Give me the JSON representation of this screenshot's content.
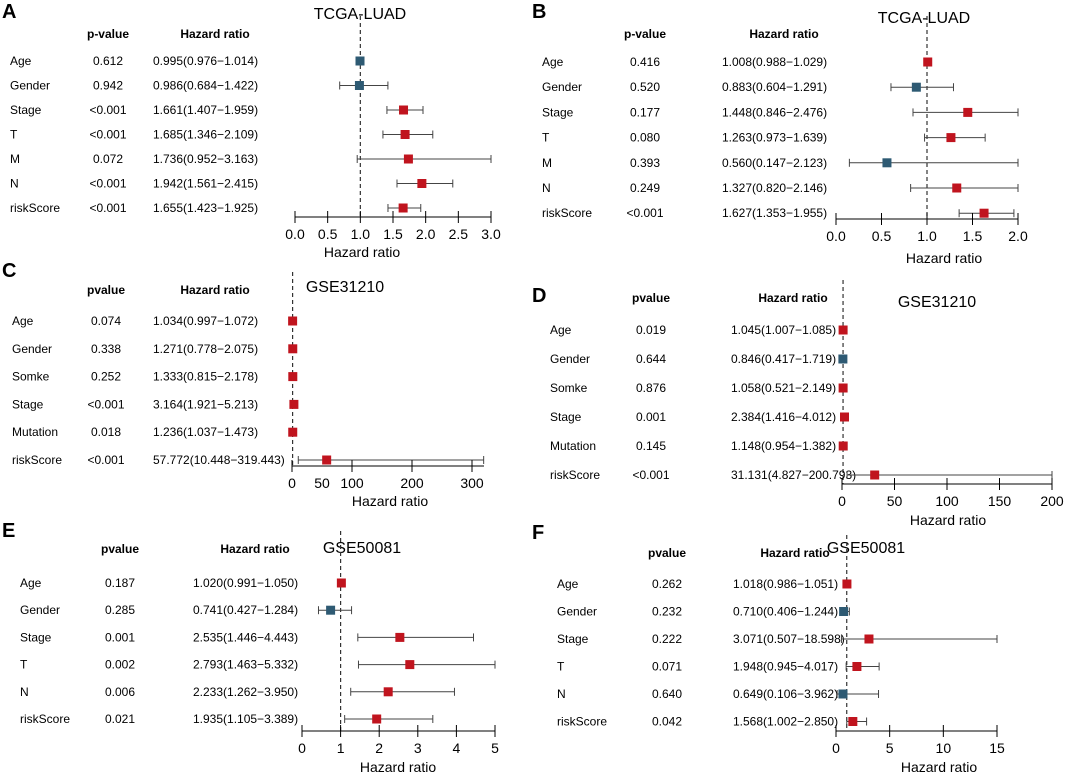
{
  "figure": {
    "colors": {
      "risk": "#c0141e",
      "protective": "#2e5a73",
      "line": "#444444"
    }
  },
  "chart_data": [
    {
      "panel": "A",
      "type": "forest",
      "title": "TCGA-LUAD",
      "pvalue_header": "p-value",
      "hr_header": "Hazard ratio",
      "xlabel": "Hazard ratio",
      "xlim": [
        0,
        3.0
      ],
      "ref_line": 1,
      "ticks": [
        "0.0",
        "0.5",
        "1.0",
        "1.5",
        "2.0",
        "2.5",
        "3.0"
      ],
      "tick_values": [
        0,
        0.5,
        1,
        1.5,
        2,
        2.5,
        3
      ],
      "rows": [
        {
          "label": "Age",
          "pvalue": "0.612",
          "hr_text": "0.995(0.976−1.014)",
          "hr": 0.995,
          "lo": 0.976,
          "hi": 1.014
        },
        {
          "label": "Gender",
          "pvalue": "0.942",
          "hr_text": "0.986(0.684−1.422)",
          "hr": 0.986,
          "lo": 0.684,
          "hi": 1.422
        },
        {
          "label": "Stage",
          "pvalue": "<0.001",
          "hr_text": "1.661(1.407−1.959)",
          "hr": 1.661,
          "lo": 1.407,
          "hi": 1.959
        },
        {
          "label": "T",
          "pvalue": "<0.001",
          "hr_text": "1.685(1.346−2.109)",
          "hr": 1.685,
          "lo": 1.346,
          "hi": 2.109
        },
        {
          "label": "M",
          "pvalue": "0.072",
          "hr_text": "1.736(0.952−3.163)",
          "hr": 1.736,
          "lo": 0.952,
          "hi": 3.163
        },
        {
          "label": "N",
          "pvalue": "<0.001",
          "hr_text": "1.942(1.561−2.415)",
          "hr": 1.942,
          "lo": 1.561,
          "hi": 2.415
        },
        {
          "label": "riskScore",
          "pvalue": "<0.001",
          "hr_text": "1.655(1.423−1.925)",
          "hr": 1.655,
          "lo": 1.423,
          "hi": 1.925
        }
      ]
    },
    {
      "panel": "B",
      "type": "forest",
      "title": "TCGA-LUAD",
      "pvalue_header": "p-value",
      "hr_header": "Hazard ratio",
      "xlabel": "Hazard ratio",
      "xlim": [
        0,
        2.0
      ],
      "ref_line": 1,
      "ticks": [
        "0.0",
        "0.5",
        "1.0",
        "1.5",
        "2.0"
      ],
      "tick_values": [
        0,
        0.5,
        1,
        1.5,
        2
      ],
      "rows": [
        {
          "label": "Age",
          "pvalue": "0.416",
          "hr_text": "1.008(0.988−1.029)",
          "hr": 1.008,
          "lo": 0.988,
          "hi": 1.029
        },
        {
          "label": "Gender",
          "pvalue": "0.520",
          "hr_text": "0.883(0.604−1.291)",
          "hr": 0.883,
          "lo": 0.604,
          "hi": 1.291
        },
        {
          "label": "Stage",
          "pvalue": "0.177",
          "hr_text": "1.448(0.846−2.476)",
          "hr": 1.448,
          "lo": 0.846,
          "hi": 2.476
        },
        {
          "label": "T",
          "pvalue": "0.080",
          "hr_text": "1.263(0.973−1.639)",
          "hr": 1.263,
          "lo": 0.973,
          "hi": 1.639
        },
        {
          "label": "M",
          "pvalue": "0.393",
          "hr_text": "0.560(0.147−2.123)",
          "hr": 0.56,
          "lo": 0.147,
          "hi": 2.123
        },
        {
          "label": "N",
          "pvalue": "0.249",
          "hr_text": "1.327(0.820−2.146)",
          "hr": 1.327,
          "lo": 0.82,
          "hi": 2.146
        },
        {
          "label": "riskScore",
          "pvalue": "<0.001",
          "hr_text": "1.627(1.353−1.955)",
          "hr": 1.627,
          "lo": 1.353,
          "hi": 1.955
        }
      ]
    },
    {
      "panel": "C",
      "type": "forest",
      "title": "GSE31210",
      "pvalue_header": "pvalue",
      "hr_header": "Hazard ratio",
      "xlabel": "Hazard ratio",
      "xlim": [
        0,
        320
      ],
      "ref_line": 1,
      "ticks": [
        "0",
        "100",
        "200",
        "300"
      ],
      "tick_values": [
        0,
        100,
        200,
        300
      ],
      "label_ticks": [
        "0",
        "50",
        "100",
        "200",
        "300"
      ],
      "label_tick_values": [
        0,
        50,
        100,
        200,
        300
      ],
      "rows": [
        {
          "label": "Age",
          "pvalue": "0.074",
          "hr_text": "1.034(0.997−1.072)",
          "hr": 1.034,
          "lo": 0.997,
          "hi": 1.072
        },
        {
          "label": "Gender",
          "pvalue": "0.338",
          "hr_text": "1.271(0.778−2.075)",
          "hr": 1.271,
          "lo": 0.778,
          "hi": 2.075
        },
        {
          "label": "Somke",
          "pvalue": "0.252",
          "hr_text": "1.333(0.815−2.178)",
          "hr": 1.333,
          "lo": 0.815,
          "hi": 2.178
        },
        {
          "label": "Stage",
          "pvalue": "<0.001",
          "hr_text": "3.164(1.921−5.213)",
          "hr": 3.164,
          "lo": 1.921,
          "hi": 5.213
        },
        {
          "label": "Mutation",
          "pvalue": "0.018",
          "hr_text": "1.236(1.037−1.473)",
          "hr": 1.236,
          "lo": 1.037,
          "hi": 1.473
        },
        {
          "label": "riskScore",
          "pvalue": "<0.001",
          "hr_text": "57.772(10.448−319.443)",
          "hr": 57.772,
          "lo": 10.448,
          "hi": 319.443
        }
      ]
    },
    {
      "panel": "D",
      "type": "forest",
      "title": "GSE31210",
      "pvalue_header": "pvalue",
      "hr_header": "Hazard ratio",
      "xlabel": "Hazard ratio",
      "xlim": [
        0,
        200
      ],
      "ref_line": 1,
      "ticks": [
        "0",
        "50",
        "100",
        "150",
        "200"
      ],
      "tick_values": [
        0,
        50,
        100,
        150,
        200
      ],
      "rows": [
        {
          "label": "Age",
          "pvalue": "0.019",
          "hr_text": "1.045(1.007−1.085)",
          "hr": 1.045,
          "lo": 1.007,
          "hi": 1.085
        },
        {
          "label": "Gender",
          "pvalue": "0.644",
          "hr_text": "0.846(0.417−1.719)",
          "hr": 0.846,
          "lo": 0.417,
          "hi": 1.719
        },
        {
          "label": "Somke",
          "pvalue": "0.876",
          "hr_text": "1.058(0.521−2.149)",
          "hr": 1.058,
          "lo": 0.521,
          "hi": 2.149
        },
        {
          "label": "Stage",
          "pvalue": "0.001",
          "hr_text": "2.384(1.416−4.012)",
          "hr": 2.384,
          "lo": 1.416,
          "hi": 4.012
        },
        {
          "label": "Mutation",
          "pvalue": "0.145",
          "hr_text": "1.148(0.954−1.382)",
          "hr": 1.148,
          "lo": 0.954,
          "hi": 1.382
        },
        {
          "label": "riskScore",
          "pvalue": "<0.001",
          "hr_text": "31.131(4.827−200.793)",
          "hr": 31.131,
          "lo": 4.827,
          "hi": 200.793
        }
      ]
    },
    {
      "panel": "E",
      "type": "forest",
      "title": "GSE50081",
      "pvalue_header": "pvalue",
      "hr_header": "Hazard ratio",
      "xlabel": "Hazard ratio",
      "xlim": [
        0,
        5
      ],
      "ref_line": 1,
      "ticks": [
        "0",
        "1",
        "2",
        "3",
        "4",
        "5"
      ],
      "tick_values": [
        0,
        1,
        2,
        3,
        4,
        5
      ],
      "rows": [
        {
          "label": "Age",
          "pvalue": "0.187",
          "hr_text": "1.020(0.991−1.050)",
          "hr": 1.02,
          "lo": 0.991,
          "hi": 1.05
        },
        {
          "label": "Gender",
          "pvalue": "0.285",
          "hr_text": "0.741(0.427−1.284)",
          "hr": 0.741,
          "lo": 0.427,
          "hi": 1.284
        },
        {
          "label": "Stage",
          "pvalue": "0.001",
          "hr_text": "2.535(1.446−4.443)",
          "hr": 2.535,
          "lo": 1.446,
          "hi": 4.443
        },
        {
          "label": "T",
          "pvalue": "0.002",
          "hr_text": "2.793(1.463−5.332)",
          "hr": 2.793,
          "lo": 1.463,
          "hi": 5.332
        },
        {
          "label": "N",
          "pvalue": "0.006",
          "hr_text": "2.233(1.262−3.950)",
          "hr": 2.233,
          "lo": 1.262,
          "hi": 3.95
        },
        {
          "label": "riskScore",
          "pvalue": "0.021",
          "hr_text": "1.935(1.105−3.389)",
          "hr": 1.935,
          "lo": 1.105,
          "hi": 3.389
        }
      ]
    },
    {
      "panel": "F",
      "type": "forest",
      "title": "GSE50081",
      "pvalue_header": "pvalue",
      "hr_header": "Hazard ratio",
      "xlabel": "Hazard ratio",
      "xlim": [
        0,
        15
      ],
      "ref_line": 1,
      "ticks": [
        "0",
        "5",
        "10",
        "15"
      ],
      "tick_values": [
        0,
        5,
        10,
        15
      ],
      "rows": [
        {
          "label": "Age",
          "pvalue": "0.262",
          "hr_text": "1.018(0.986−1.051)",
          "hr": 1.018,
          "lo": 0.986,
          "hi": 1.051
        },
        {
          "label": "Gender",
          "pvalue": "0.232",
          "hr_text": "0.710(0.406−1.244)",
          "hr": 0.71,
          "lo": 0.406,
          "hi": 1.244
        },
        {
          "label": "Stage",
          "pvalue": "0.222",
          "hr_text": "3.071(0.507−18.598)",
          "hr": 3.071,
          "lo": 0.507,
          "hi": 18.598
        },
        {
          "label": "T",
          "pvalue": "0.071",
          "hr_text": "1.948(0.945−4.017)",
          "hr": 1.948,
          "lo": 0.945,
          "hi": 4.017
        },
        {
          "label": "N",
          "pvalue": "0.640",
          "hr_text": "0.649(0.106−3.962)",
          "hr": 0.649,
          "lo": 0.106,
          "hi": 3.962
        },
        {
          "label": "riskScore",
          "pvalue": "0.042",
          "hr_text": "1.568(1.002−2.850)",
          "hr": 1.568,
          "lo": 1.002,
          "hi": 2.85
        }
      ]
    }
  ]
}
